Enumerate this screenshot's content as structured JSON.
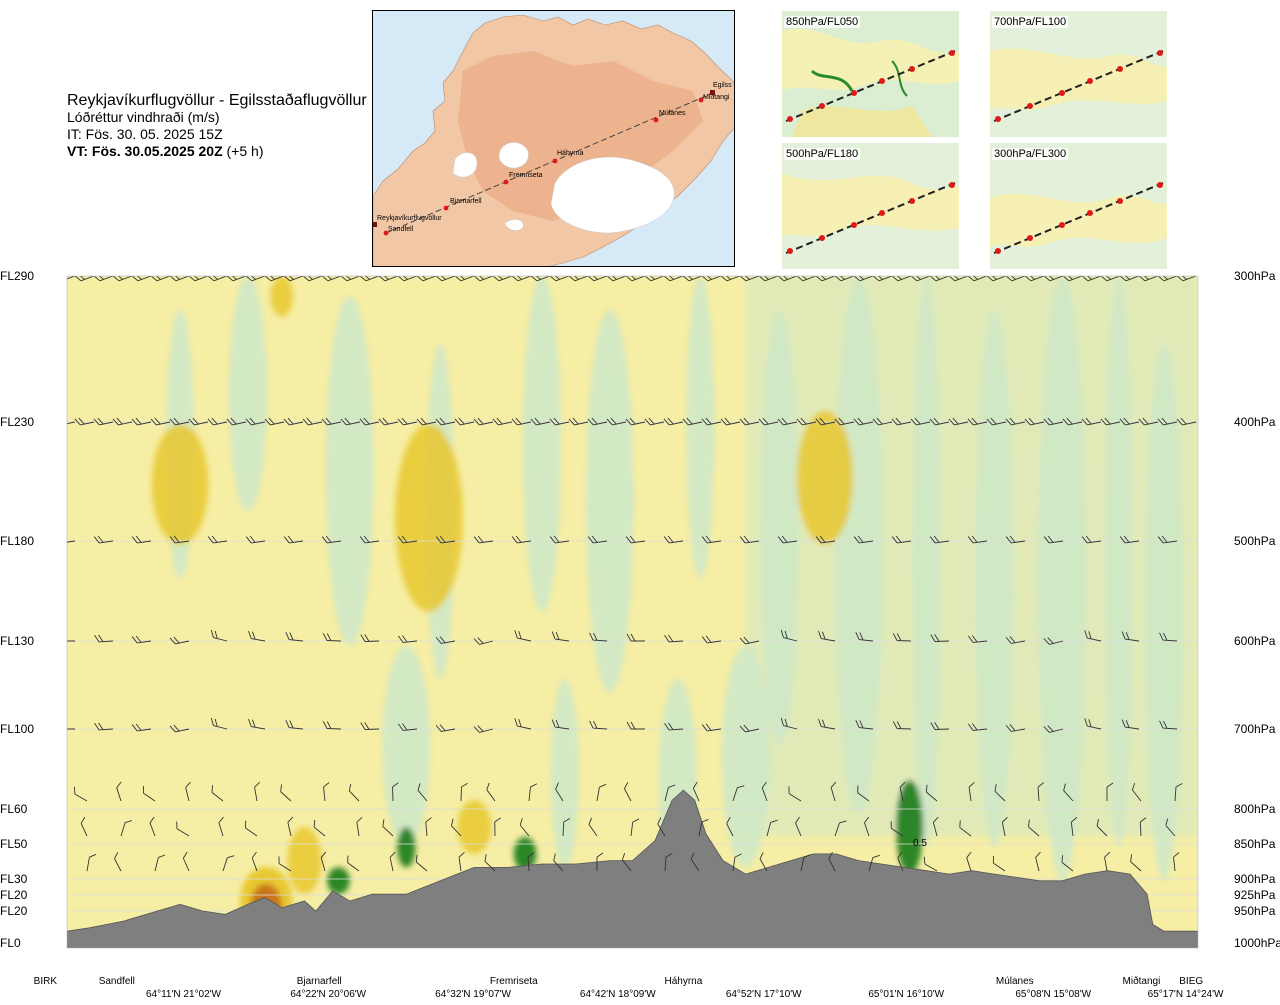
{
  "header": {
    "route": "Reykjavíkurflugvöllur - Egilsstaðaflugvöllur",
    "parameter": "Lóðréttur vindhraði (m/s)",
    "issue_time": "IT: Fös. 30. 05. 2025 15Z",
    "valid_time_bold": "VT: Fös. 30.05.2025 20Z",
    "valid_offset": "(+5 h)"
  },
  "map": {
    "waypoints": [
      "Reykjavíkurflugvöllur",
      "Sandfell",
      "Bjarnarfell",
      "Fremriseta",
      "Háhyrna",
      "Múlanes",
      "Miðtangi",
      "Egilsstaðaflugvöllur"
    ],
    "map_label_egils": "Egilss",
    "map_label_midtangi": "Miðtangi"
  },
  "mini_maps": [
    {
      "label": "850hPa/FL050"
    },
    {
      "label": "700hPa/FL100"
    },
    {
      "label": "500hPa/FL180"
    },
    {
      "label": "300hPa/FL300"
    }
  ],
  "colors": {
    "updraft_weak": "#cfe8c6",
    "updraft_strong": "#1b7a1b",
    "downdraft_weak": "#f6eea4",
    "downdraft_strong": "#e8c830",
    "downdraft_extreme": "#c06018",
    "terrain": "#7f7f7f"
  },
  "chart_data": {
    "type": "heatmap",
    "title": "Lóðréttur vindhraði (m/s)",
    "left_axis_levels": [
      {
        "label": "FL290",
        "pressure": "300hPa"
      },
      {
        "label": "FL230",
        "pressure": "400hPa"
      },
      {
        "label": "FL180",
        "pressure": "500hPa"
      },
      {
        "label": "FL130",
        "pressure": "600hPa"
      },
      {
        "label": "FL100",
        "pressure": "700hPa"
      },
      {
        "label": "FL60",
        "pressure": "800hPa"
      },
      {
        "label": "FL50",
        "pressure": "850hPa"
      },
      {
        "label": "FL30",
        "pressure": "900hPa"
      },
      {
        "label": "FL20",
        "pressure": "925hPa"
      },
      {
        "label": "FL20",
        "pressure": "950hPa"
      },
      {
        "label": "FL0",
        "pressure": "1000hPa"
      }
    ],
    "waypoints": [
      {
        "name": "BIRK",
        "frac": 0.0
      },
      {
        "name": "Sandfell",
        "frac": 0.044
      },
      {
        "name": "Bjarnarfell",
        "frac": 0.223
      },
      {
        "name": "Fremriseta",
        "frac": 0.395
      },
      {
        "name": "Háhyrna",
        "frac": 0.545
      },
      {
        "name": "Múlanes",
        "frac": 0.838
      },
      {
        "name": "Miðtangi",
        "frac": 0.95
      },
      {
        "name": "BIEG",
        "frac": 0.994
      }
    ],
    "coordinates": [
      {
        "label": "64°11'N 21°02'W",
        "frac": 0.103
      },
      {
        "label": "64°22'N 20°06'W",
        "frac": 0.231
      },
      {
        "label": "64°32'N 19°07'W",
        "frac": 0.359
      },
      {
        "label": "64°42'N 18°09'W",
        "frac": 0.487
      },
      {
        "label": "64°52'N 17°10'W",
        "frac": 0.616
      },
      {
        "label": "65°01'N 16°10'W",
        "frac": 0.742
      },
      {
        "label": "65°08'N 15°08'W",
        "frac": 0.872
      },
      {
        "label": "65°17'N 14°24'W",
        "frac": 0.989
      }
    ],
    "annotations": [
      "0.5"
    ],
    "grid": true
  }
}
